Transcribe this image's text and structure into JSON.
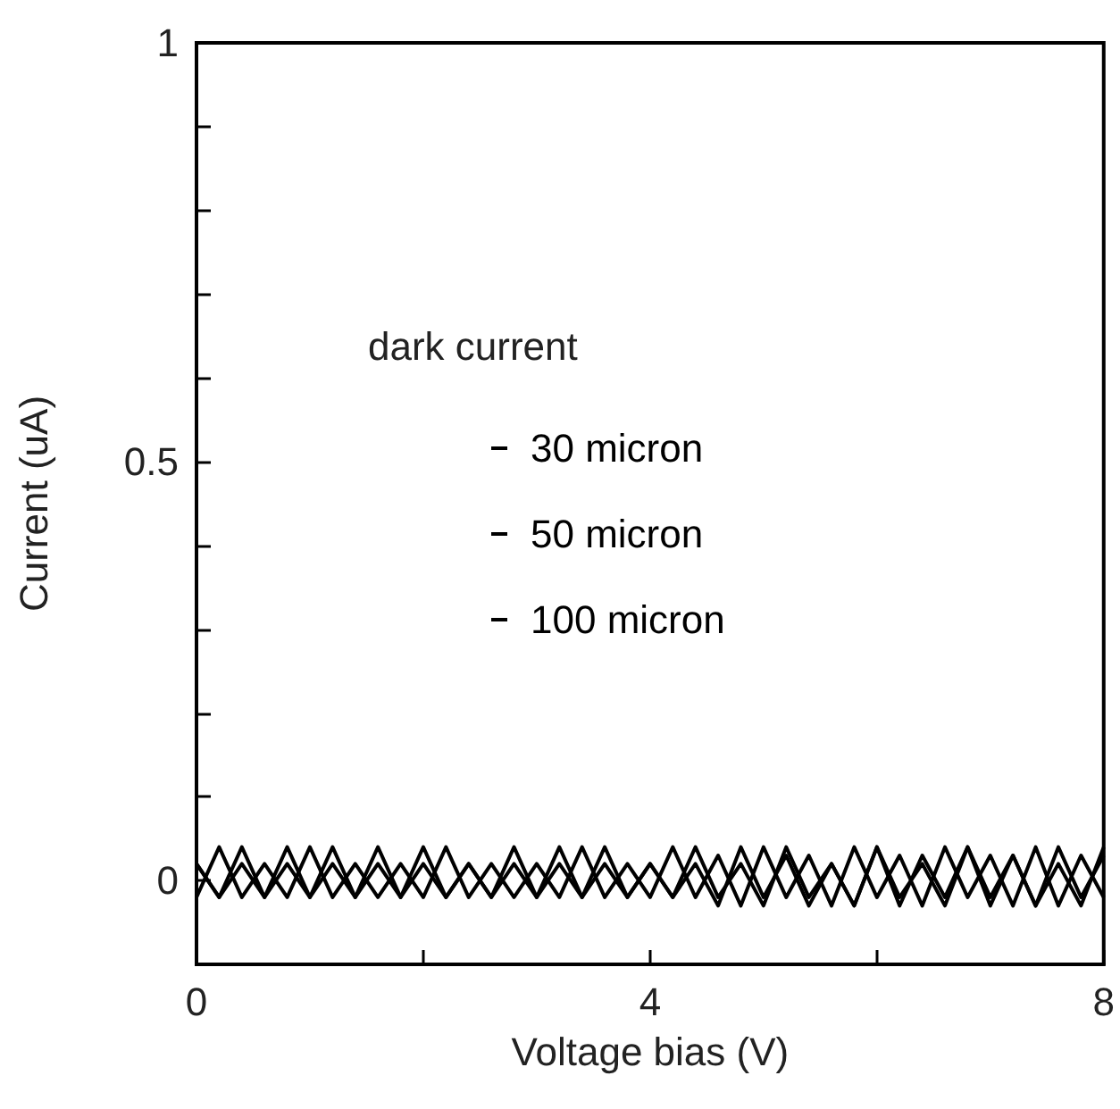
{
  "chart_data": {
    "type": "line",
    "xlabel": "Voltage bias (V)",
    "ylabel": "Current (uA)",
    "legend_title": "dark current",
    "legend": "left",
    "xlim": [
      0,
      8
    ],
    "xticks": [
      0,
      {
        "value": 2,
        "label": null
      },
      4,
      {
        "value": 6,
        "label": null
      },
      8
    ],
    "ylim": [
      -0.1,
      1
    ],
    "yticks": [
      0,
      {
        "value": 0.1,
        "label": null
      },
      {
        "value": 0.2,
        "label": null
      },
      {
        "value": 0.3,
        "label": null
      },
      {
        "value": 0.4,
        "label": null
      },
      0.5,
      {
        "value": 0.6,
        "label": null
      },
      {
        "value": 0.7,
        "label": null
      },
      {
        "value": 0.8,
        "label": null
      },
      {
        "value": 0.9,
        "label": null
      },
      1
    ],
    "x": [
      0,
      0.2,
      0.4,
      0.6,
      0.8,
      1,
      1.2,
      1.4,
      1.6,
      1.8,
      2,
      2.2,
      2.4,
      2.6,
      2.8,
      3,
      3.2,
      3.4,
      3.6,
      3.8,
      4,
      4.2,
      4.4,
      4.6,
      4.8,
      5,
      5.2,
      5.4,
      5.6,
      5.8,
      6,
      6.2,
      6.4,
      6.6,
      6.8,
      7,
      7.2,
      7.4,
      7.6,
      7.8,
      8
    ],
    "series": [
      {
        "name": "30 micron",
        "color": "#000000",
        "values": [
          0.02,
          -0.02,
          0.04,
          -0.02,
          0.02,
          -0.02,
          0.04,
          -0.02,
          0.02,
          -0.02,
          0.04,
          -0.02,
          0.02,
          -0.02,
          0.04,
          -0.02,
          0.02,
          -0.02,
          0.04,
          -0.02,
          0.02,
          -0.02,
          0.04,
          -0.02,
          0.02,
          -0.03,
          0.04,
          -0.02,
          0.02,
          -0.03,
          0.04,
          -0.02,
          0.02,
          -0.03,
          0.04,
          -0.02,
          0.03,
          -0.03,
          0.04,
          -0.02,
          0.03
        ]
      },
      {
        "name": "50 micron",
        "color": "#000000",
        "values": [
          -0.02,
          0.04,
          -0.02,
          0.02,
          -0.02,
          0.04,
          -0.02,
          0.02,
          -0.02,
          0.02,
          -0.02,
          0.04,
          -0.02,
          0.02,
          -0.02,
          0.02,
          -0.02,
          0.04,
          -0.02,
          0.02,
          -0.02,
          0.04,
          -0.02,
          0.03,
          -0.03,
          0.04,
          -0.02,
          0.03,
          -0.03,
          0.04,
          -0.02,
          0.03,
          -0.03,
          0.04,
          -0.02,
          0.03,
          -0.03,
          0.04,
          -0.03,
          0.03,
          -0.02
        ]
      },
      {
        "name": "100 micron",
        "color": "#000000",
        "values": [
          0.02,
          -0.02,
          0.02,
          -0.02,
          0.04,
          -0.02,
          0.02,
          -0.02,
          0.04,
          -0.02,
          0.02,
          -0.02,
          0.02,
          -0.02,
          0.02,
          -0.02,
          0.04,
          -0.02,
          0.02,
          -0.02,
          0.02,
          -0.02,
          0.02,
          -0.03,
          0.04,
          -0.02,
          0.03,
          -0.03,
          0.02,
          -0.03,
          0.04,
          -0.03,
          0.03,
          -0.02,
          0.04,
          -0.03,
          0.03,
          -0.03,
          0.02,
          -0.03,
          0.04
        ]
      }
    ]
  }
}
